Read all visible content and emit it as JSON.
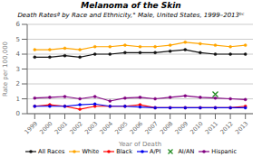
{
  "chart_data": {
    "type": "line",
    "title": "Melanoma of the Skin",
    "subtitle": "Death Ratesª by Race and Ethnicity,° Male, United States, 1999–2013ᵇᶜ",
    "x_label": "Year of Death",
    "y_label": "Rate per 100,000",
    "x": [
      1999,
      2000,
      2001,
      2002,
      2003,
      2004,
      2005,
      2006,
      2007,
      2008,
      2009,
      2010,
      2011,
      2012,
      2013
    ],
    "xlim": [
      1998.5,
      2013.5
    ],
    "xticks": [
      1999,
      2000,
      2001,
      2002,
      2003,
      2004,
      2005,
      2006,
      2007,
      2008,
      2009,
      2010,
      2011,
      2012,
      2013
    ],
    "ylim": [
      0,
      6
    ],
    "yticks": [
      0,
      1,
      2,
      3,
      4,
      5,
      6
    ],
    "grid": true,
    "legend": "bottom",
    "series": [
      {
        "name": "All Races",
        "color": "#111111",
        "marker": "o",
        "line_style": "solid",
        "values": [
          3.8,
          3.8,
          3.9,
          3.8,
          4.0,
          4.0,
          4.1,
          4.1,
          4.1,
          4.2,
          4.3,
          4.1,
          4.0,
          4.0,
          4.0
        ]
      },
      {
        "name": "White",
        "color": "#FFA500",
        "marker": "o",
        "line_style": "solid",
        "values": [
          4.3,
          4.3,
          4.4,
          4.3,
          4.5,
          4.5,
          4.6,
          4.5,
          4.5,
          4.6,
          4.8,
          4.7,
          4.6,
          4.5,
          4.6
        ]
      },
      {
        "name": "Black",
        "color": "#FF0000",
        "marker": "o",
        "line_style": "solid",
        "values": [
          0.5,
          0.6,
          0.5,
          0.3,
          0.5,
          0.5,
          0.5,
          0.6,
          0.4,
          0.4,
          0.4,
          0.4,
          0.4,
          0.4,
          0.5
        ]
      },
      {
        "name": "A/PI",
        "color": "#0000EE",
        "marker": "o",
        "line_style": "solid",
        "values": [
          0.5,
          0.5,
          0.5,
          0.6,
          0.65,
          0.5,
          0.5,
          0.45,
          0.4,
          0.4,
          0.4,
          0.4,
          0.4,
          0.4,
          0.4
        ]
      },
      {
        "name": "AI/AN",
        "color": "#228B22",
        "marker": "x",
        "line_style": "none",
        "values": [
          null,
          null,
          null,
          null,
          null,
          null,
          null,
          null,
          null,
          null,
          null,
          null,
          1.3,
          null,
          null
        ]
      },
      {
        "name": "Hispanic",
        "color": "#800080",
        "marker": "o",
        "line_style": "solid",
        "values": [
          1.05,
          1.1,
          1.15,
          1.0,
          1.15,
          0.85,
          1.05,
          1.1,
          1.0,
          1.1,
          1.2,
          1.1,
          1.05,
          1.0,
          0.95
        ]
      }
    ]
  }
}
